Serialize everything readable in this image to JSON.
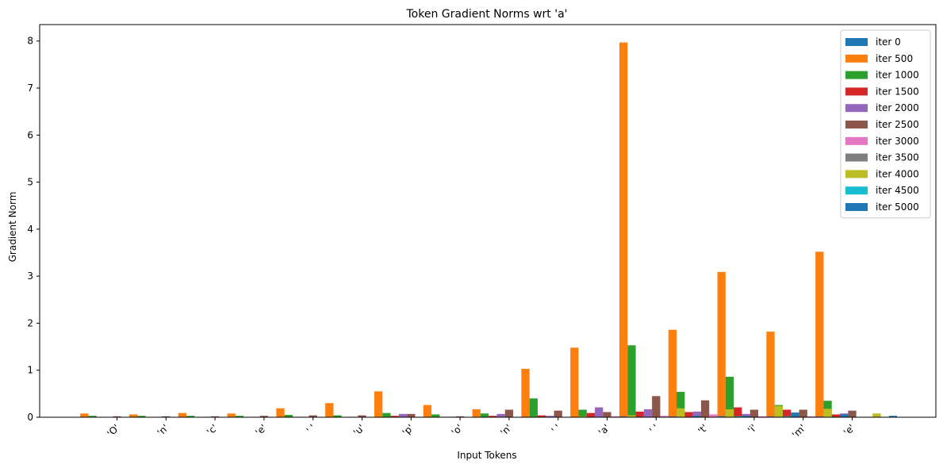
{
  "chart_data": {
    "type": "bar",
    "title": "Token Gradient Norms wrt 'a'",
    "xlabel": "Input Tokens",
    "ylabel": "Gradient Norm",
    "ylim": [
      0,
      8.35
    ],
    "yticks": [
      "0",
      "1",
      "2",
      "3",
      "4",
      "5",
      "6",
      "7",
      "8"
    ],
    "legend_position": "top-right",
    "grid": false,
    "categories": [
      "'O'",
      "'n'",
      "'c'",
      "'e'",
      "' '",
      "'u'",
      "'p'",
      "'o'",
      "'n'",
      "' '",
      "'a'",
      "' '",
      "'t'",
      "'i'",
      "'m'",
      "'e'"
    ],
    "series": [
      {
        "name": "iter 0",
        "color": "#1f77b4",
        "values": [
          0,
          0,
          0,
          0,
          0,
          0,
          0,
          0,
          0,
          0,
          0,
          0,
          0,
          0,
          0,
          0
        ]
      },
      {
        "name": "iter 500",
        "color": "#ff7f0e",
        "values": [
          0.08,
          0.06,
          0.09,
          0.08,
          0.19,
          0.3,
          0.55,
          0.26,
          0.17,
          1.03,
          1.48,
          7.97,
          1.86,
          3.09,
          1.82,
          3.52
        ]
      },
      {
        "name": "iter 1000",
        "color": "#2ca02c",
        "values": [
          0.03,
          0.03,
          0.03,
          0.03,
          0.05,
          0.04,
          0.09,
          0.06,
          0.08,
          0.4,
          0.16,
          1.53,
          0.54,
          0.86,
          0.26,
          0.35
        ]
      },
      {
        "name": "iter 1500",
        "color": "#d62728",
        "values": [
          0,
          0,
          0,
          0,
          0.01,
          0,
          0.03,
          0.01,
          0.03,
          0.04,
          0.09,
          0.12,
          0.11,
          0.21,
          0.16,
          0.06
        ]
      },
      {
        "name": "iter 2000",
        "color": "#9467bd",
        "values": [
          0,
          0.01,
          0.01,
          0.01,
          0.01,
          0.01,
          0.07,
          0.01,
          0.07,
          0.03,
          0.21,
          0.17,
          0.12,
          0.07,
          0.08,
          0.08
        ]
      },
      {
        "name": "iter 2500",
        "color": "#8c564b",
        "values": [
          0.02,
          0.02,
          0.02,
          0.03,
          0.04,
          0.04,
          0.07,
          0.02,
          0.16,
          0.14,
          0.11,
          0.45,
          0.36,
          0.16,
          0.16,
          0.14
        ]
      },
      {
        "name": "iter 3000",
        "color": "#e377c2",
        "values": [
          0,
          0,
          0,
          0,
          0,
          0,
          0.01,
          0,
          0.01,
          0.01,
          0.02,
          0.03,
          0.06,
          0.02,
          0.02,
          0.01
        ]
      },
      {
        "name": "iter 3500",
        "color": "#7f7f7f",
        "values": [
          0,
          0,
          0,
          0,
          0,
          0,
          0.01,
          0,
          0.01,
          0.01,
          0.02,
          0.02,
          0.03,
          0.02,
          0.02,
          0.01
        ]
      },
      {
        "name": "iter 4000",
        "color": "#bcbd22",
        "values": [
          0,
          0,
          0,
          0,
          0,
          0,
          0.01,
          0.01,
          0.01,
          0.02,
          0.04,
          0.19,
          0.17,
          0.24,
          0.18,
          0.08
        ]
      },
      {
        "name": "iter 4500",
        "color": "#17becf",
        "values": [
          0,
          0,
          0,
          0,
          0,
          0,
          0,
          0,
          0,
          0,
          0.01,
          0.01,
          0.02,
          0.02,
          0.01,
          0.01
        ]
      },
      {
        "name": "iter 5000",
        "color": "#1f77b4",
        "values": [
          0,
          0,
          0,
          0,
          0,
          0,
          0.01,
          0,
          0.01,
          0.01,
          0.01,
          0.03,
          0.03,
          0.1,
          0.06,
          0.03
        ]
      }
    ]
  }
}
